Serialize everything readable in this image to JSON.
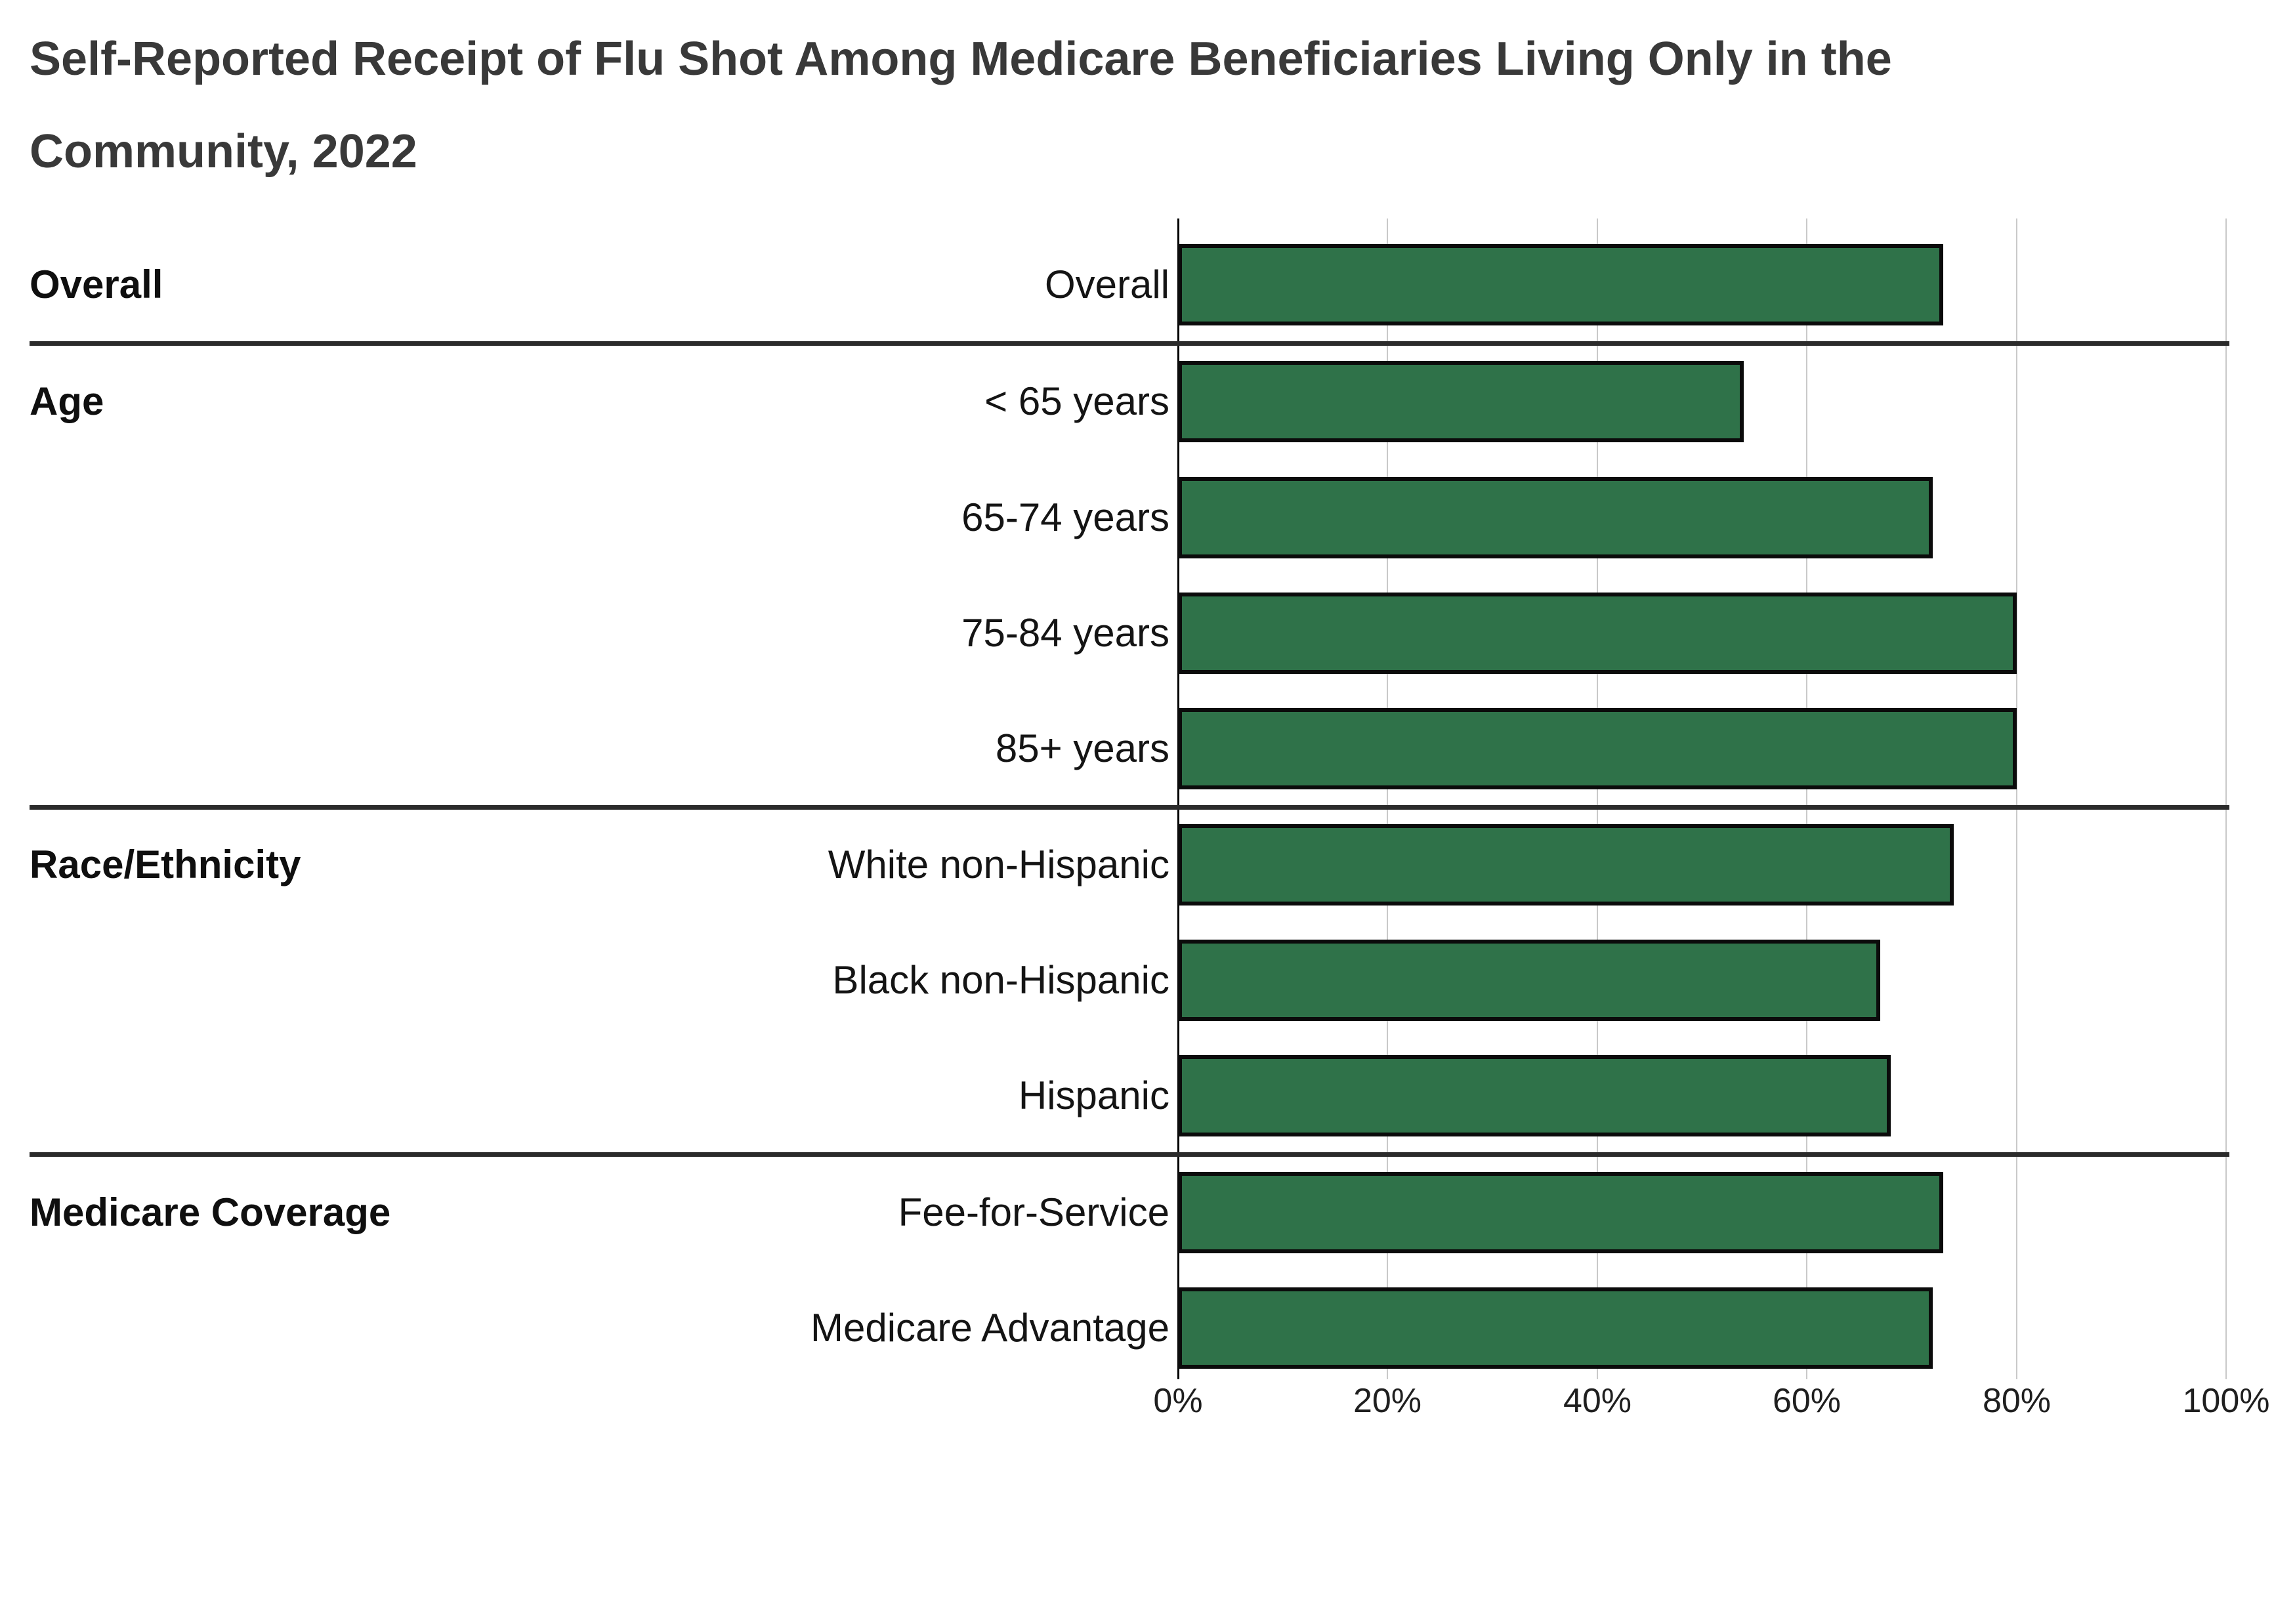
{
  "page": {
    "background_color": "#ffffff"
  },
  "header": {
    "title": "Self-Reported Receipt of Flu Shot Among Medicare Beneficiaries Living Only in the Community, 2022",
    "title_lines": [
      "Self-Reported Receipt of Flu Shot Among Medicare Beneficiaries Living Only in the",
      "Community, 2022"
    ],
    "title_color": "#393939"
  },
  "chart_data": {
    "type": "bar",
    "orientation": "horizontal",
    "unit": "%",
    "xlim": [
      0,
      100
    ],
    "x_ticks": [
      "0%",
      "20%",
      "40%",
      "60%",
      "80%",
      "100%"
    ],
    "grid": "vertical-light-gray",
    "legend": "none",
    "bar_color": "#2F7249",
    "bar_border_color": "#0B0B0B",
    "axis_line_color": "#000000",
    "gridline_color": "#C9C9C9",
    "group_separator_color": "#2B2B2B",
    "groups": [
      {
        "label": "Overall",
        "rows": [
          {
            "label": "Overall",
            "value": 73
          }
        ]
      },
      {
        "label": "Age",
        "rows": [
          {
            "label": "< 65 years",
            "value": 54
          },
          {
            "label": "65-74 years",
            "value": 72
          },
          {
            "label": "75-84 years",
            "value": 80
          },
          {
            "label": "85+ years",
            "value": 80
          }
        ]
      },
      {
        "label": "Race/Ethnicity",
        "rows": [
          {
            "label": "White non-Hispanic",
            "value": 74
          },
          {
            "label": "Black non-Hispanic",
            "value": 67
          },
          {
            "label": "Hispanic",
            "value": 68
          }
        ]
      },
      {
        "label": "Medicare Coverage",
        "rows": [
          {
            "label": "Fee-for-Service",
            "value": 73
          },
          {
            "label": "Medicare Advantage",
            "value": 72
          }
        ]
      }
    ]
  }
}
